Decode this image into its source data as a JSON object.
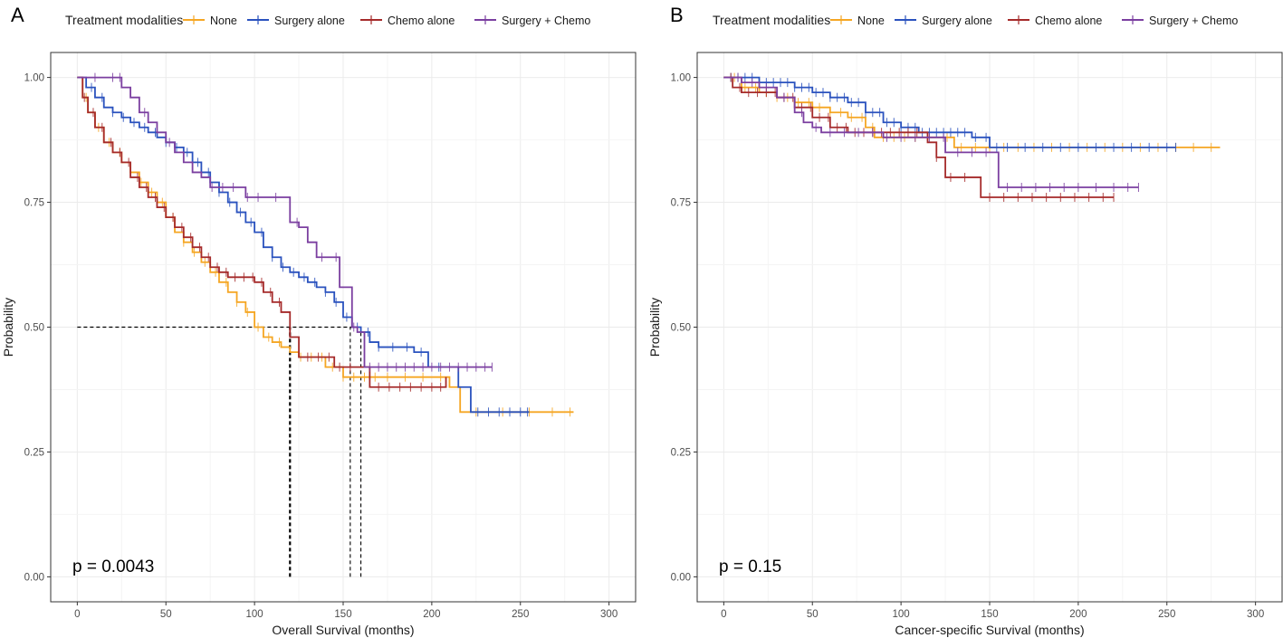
{
  "chart_data": [
    {
      "type": "line",
      "panel_label": "A",
      "legend_title": "Treatment modalities",
      "xlabel": "Overall Survival (months)",
      "ylabel": "Probability",
      "xlim": [
        -15,
        315
      ],
      "ylim": [
        -0.05,
        1.05
      ],
      "xticks": [
        0,
        50,
        100,
        150,
        200,
        250,
        300
      ],
      "yticks": [
        0,
        0.25,
        0.5,
        0.75,
        1.0
      ],
      "ytick_labels": [
        "0.00",
        "0.25",
        "0.50",
        "0.75",
        "1.00"
      ],
      "grid": true,
      "annotation": "p = 0.0043",
      "median_lines": [
        {
          "y": 0.5,
          "x_from": 0,
          "x_to": 157
        },
        {
          "x": 120,
          "y_from": 0,
          "y_to": 0.5,
          "thick": true
        },
        {
          "x": 154,
          "y_from": 0,
          "y_to": 0.5,
          "thick": false
        },
        {
          "x": 160,
          "y_from": 0,
          "y_to": 0.5,
          "thick": false
        }
      ],
      "series": [
        {
          "name": "None",
          "color": "#F5A623",
          "x": [
            0,
            3,
            6,
            10,
            15,
            20,
            25,
            30,
            35,
            40,
            45,
            50,
            55,
            60,
            65,
            70,
            75,
            80,
            85,
            90,
            95,
            100,
            105,
            110,
            115,
            118,
            120,
            125,
            130,
            140,
            150,
            160,
            170,
            180,
            190,
            200,
            210,
            216,
            230,
            250,
            270,
            280
          ],
          "y": [
            1.0,
            0.96,
            0.93,
            0.9,
            0.87,
            0.85,
            0.83,
            0.81,
            0.79,
            0.77,
            0.75,
            0.72,
            0.69,
            0.67,
            0.65,
            0.63,
            0.61,
            0.59,
            0.57,
            0.55,
            0.53,
            0.5,
            0.48,
            0.47,
            0.46,
            0.46,
            0.45,
            0.44,
            0.44,
            0.42,
            0.4,
            0.4,
            0.4,
            0.4,
            0.4,
            0.4,
            0.38,
            0.33,
            0.33,
            0.33,
            0.33,
            0.33
          ],
          "censor_x": [
            5,
            12,
            18,
            24,
            30,
            36,
            42,
            48,
            54,
            60,
            66,
            72,
            78,
            84,
            90,
            96,
            102,
            108,
            114,
            126,
            132,
            138,
            144,
            150,
            156,
            162,
            168,
            175,
            185,
            195,
            205,
            225,
            240,
            255,
            268,
            278
          ]
        },
        {
          "name": "Surgery alone",
          "color": "#2A52BE",
          "x": [
            0,
            5,
            10,
            15,
            20,
            25,
            30,
            35,
            40,
            45,
            50,
            55,
            60,
            65,
            70,
            75,
            80,
            85,
            90,
            95,
            100,
            105,
            110,
            115,
            120,
            125,
            130,
            135,
            140,
            145,
            150,
            155,
            160,
            165,
            170,
            180,
            190,
            198,
            208,
            215,
            222,
            230,
            240,
            255
          ],
          "y": [
            1.0,
            0.98,
            0.96,
            0.94,
            0.93,
            0.92,
            0.91,
            0.9,
            0.89,
            0.88,
            0.87,
            0.86,
            0.85,
            0.83,
            0.81,
            0.79,
            0.77,
            0.75,
            0.73,
            0.71,
            0.69,
            0.66,
            0.64,
            0.62,
            0.61,
            0.6,
            0.59,
            0.58,
            0.57,
            0.55,
            0.52,
            0.5,
            0.49,
            0.47,
            0.46,
            0.46,
            0.45,
            0.42,
            0.42,
            0.38,
            0.33,
            0.33,
            0.33,
            0.33
          ],
          "censor_x": [
            8,
            14,
            20,
            26,
            32,
            38,
            44,
            50,
            56,
            62,
            68,
            74,
            80,
            86,
            92,
            98,
            104,
            110,
            116,
            122,
            128,
            134,
            140,
            146,
            152,
            158,
            164,
            170,
            178,
            186,
            194,
            204,
            226,
            232,
            238,
            244,
            250,
            254
          ]
        },
        {
          "name": "Chemo alone",
          "color": "#A52A2A",
          "x": [
            0,
            3,
            6,
            10,
            15,
            20,
            25,
            30,
            35,
            40,
            45,
            50,
            55,
            60,
            65,
            70,
            75,
            80,
            85,
            90,
            95,
            100,
            105,
            110,
            115,
            120,
            125,
            130,
            140,
            145,
            150,
            160,
            165,
            170,
            180,
            190,
            200,
            208
          ],
          "y": [
            1.0,
            0.96,
            0.93,
            0.9,
            0.87,
            0.85,
            0.83,
            0.8,
            0.78,
            0.76,
            0.74,
            0.72,
            0.7,
            0.68,
            0.66,
            0.64,
            0.62,
            0.61,
            0.6,
            0.6,
            0.6,
            0.59,
            0.57,
            0.55,
            0.53,
            0.48,
            0.44,
            0.44,
            0.44,
            0.42,
            0.42,
            0.42,
            0.38,
            0.38,
            0.38,
            0.38,
            0.38,
            0.4
          ],
          "censor_x": [
            4,
            9,
            14,
            19,
            24,
            29,
            34,
            39,
            44,
            49,
            54,
            59,
            64,
            69,
            74,
            79,
            84,
            89,
            94,
            99,
            104,
            109,
            114,
            130,
            136,
            142,
            148,
            154,
            170,
            176,
            182,
            188,
            194,
            200,
            205
          ]
        },
        {
          "name": "Surgery + Chemo",
          "color": "#7B3FA0",
          "x": [
            0,
            15,
            22,
            25,
            30,
            35,
            40,
            45,
            50,
            55,
            60,
            65,
            70,
            75,
            80,
            85,
            90,
            95,
            100,
            105,
            110,
            115,
            120,
            125,
            130,
            135,
            140,
            148,
            152,
            155,
            158,
            162,
            170,
            180,
            200,
            220,
            234
          ],
          "y": [
            1.0,
            1.0,
            1.0,
            0.98,
            0.96,
            0.93,
            0.91,
            0.89,
            0.87,
            0.85,
            0.83,
            0.81,
            0.8,
            0.78,
            0.78,
            0.78,
            0.78,
            0.76,
            0.76,
            0.76,
            0.76,
            0.76,
            0.71,
            0.7,
            0.67,
            0.64,
            0.64,
            0.58,
            0.58,
            0.5,
            0.49,
            0.42,
            0.42,
            0.42,
            0.42,
            0.42,
            0.42
          ],
          "censor_x": [
            10,
            20,
            24,
            38,
            52,
            76,
            82,
            88,
            96,
            102,
            112,
            124,
            138,
            146,
            156,
            165,
            170,
            175,
            180,
            185,
            190,
            195,
            200,
            205,
            210,
            215,
            220,
            225,
            230,
            234
          ]
        }
      ]
    },
    {
      "type": "line",
      "panel_label": "B",
      "legend_title": "Treatment modalities",
      "xlabel": "Cancer-specific Survival (months)",
      "ylabel": "Probability",
      "xlim": [
        -15,
        315
      ],
      "ylim": [
        -0.05,
        1.05
      ],
      "xticks": [
        0,
        50,
        100,
        150,
        200,
        250,
        300
      ],
      "yticks": [
        0,
        0.25,
        0.5,
        0.75,
        1.0
      ],
      "ytick_labels": [
        "0.00",
        "0.25",
        "0.50",
        "0.75",
        "1.00"
      ],
      "grid": true,
      "annotation": "p = 0.15",
      "median_lines": [],
      "series": [
        {
          "name": "None",
          "color": "#F5A623",
          "x": [
            0,
            10,
            20,
            30,
            40,
            50,
            60,
            70,
            80,
            85,
            90,
            100,
            110,
            120,
            130,
            140,
            150,
            160,
            200,
            250,
            280
          ],
          "y": [
            1.0,
            0.98,
            0.97,
            0.96,
            0.95,
            0.94,
            0.93,
            0.92,
            0.9,
            0.88,
            0.88,
            0.88,
            0.88,
            0.88,
            0.86,
            0.86,
            0.86,
            0.86,
            0.86,
            0.86,
            0.86
          ],
          "censor_x": [
            6,
            12,
            18,
            24,
            30,
            36,
            42,
            48,
            54,
            60,
            66,
            72,
            78,
            84,
            90,
            96,
            102,
            108,
            126,
            134,
            142,
            150,
            158,
            166,
            175,
            185,
            195,
            205,
            215,
            225,
            235,
            245,
            255,
            265,
            275
          ]
        },
        {
          "name": "Surgery alone",
          "color": "#2A52BE",
          "x": [
            0,
            10,
            20,
            30,
            40,
            50,
            60,
            70,
            80,
            90,
            100,
            110,
            120,
            130,
            140,
            150,
            160,
            200,
            255
          ],
          "y": [
            1.0,
            1.0,
            0.99,
            0.99,
            0.98,
            0.97,
            0.96,
            0.95,
            0.93,
            0.91,
            0.9,
            0.89,
            0.89,
            0.89,
            0.88,
            0.86,
            0.86,
            0.86,
            0.86
          ],
          "censor_x": [
            4,
            8,
            12,
            16,
            20,
            24,
            28,
            32,
            36,
            40,
            44,
            48,
            52,
            56,
            60,
            64,
            68,
            72,
            76,
            80,
            84,
            88,
            92,
            96,
            100,
            104,
            108,
            112,
            116,
            120,
            124,
            128,
            132,
            136,
            142,
            148,
            154,
            160,
            170,
            180,
            190,
            200,
            210,
            220,
            230,
            240,
            250,
            255
          ]
        },
        {
          "name": "Chemo alone",
          "color": "#A52A2A",
          "x": [
            0,
            5,
            10,
            20,
            30,
            40,
            50,
            60,
            70,
            80,
            90,
            100,
            105,
            110,
            115,
            120,
            125,
            130,
            135,
            140,
            145,
            160,
            180,
            200,
            220
          ],
          "y": [
            1.0,
            0.98,
            0.97,
            0.97,
            0.96,
            0.94,
            0.92,
            0.9,
            0.89,
            0.89,
            0.89,
            0.89,
            0.89,
            0.89,
            0.87,
            0.84,
            0.8,
            0.8,
            0.8,
            0.8,
            0.76,
            0.76,
            0.76,
            0.76,
            0.76
          ],
          "censor_x": [
            4,
            9,
            14,
            19,
            24,
            29,
            34,
            39,
            44,
            49,
            54,
            59,
            64,
            69,
            74,
            79,
            84,
            89,
            94,
            99,
            104,
            109,
            120,
            128,
            136,
            150,
            158,
            166,
            174,
            182,
            190,
            198,
            206,
            214,
            220
          ]
        },
        {
          "name": "Surgery + Chemo",
          "color": "#7B3FA0",
          "x": [
            0,
            10,
            20,
            30,
            40,
            45,
            50,
            55,
            60,
            70,
            80,
            90,
            100,
            110,
            120,
            125,
            130,
            150,
            155,
            160,
            180,
            200,
            234
          ],
          "y": [
            1.0,
            0.99,
            0.98,
            0.96,
            0.93,
            0.91,
            0.9,
            0.89,
            0.89,
            0.89,
            0.89,
            0.88,
            0.88,
            0.88,
            0.88,
            0.85,
            0.85,
            0.85,
            0.78,
            0.78,
            0.78,
            0.78,
            0.78
          ],
          "censor_x": [
            8,
            16,
            24,
            34,
            44,
            52,
            60,
            68,
            76,
            84,
            92,
            100,
            108,
            116,
            124,
            132,
            140,
            148,
            160,
            168,
            176,
            184,
            192,
            200,
            210,
            220,
            228,
            234
          ]
        }
      ]
    }
  ]
}
